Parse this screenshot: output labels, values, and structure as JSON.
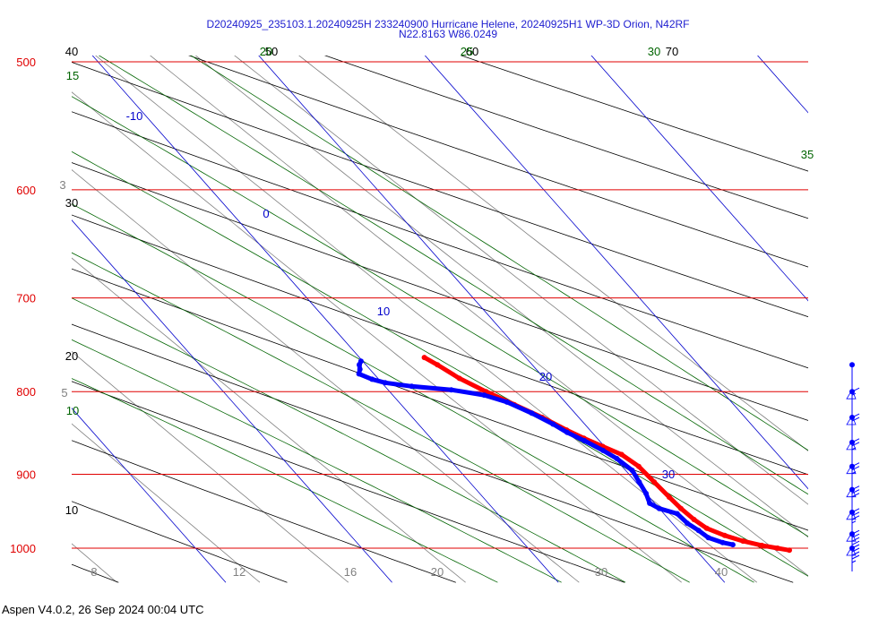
{
  "header": {
    "title_line1": "D20240925_235103.1.20240925H 233240900 Hurricane Helene, 20240925H1 WP-3D Orion, N42RF",
    "title_line2": "N22.8163 W86.0249"
  },
  "footer": {
    "text": "Aspen V4.0.2, 26 Sep 2024  00:04 UTC"
  },
  "colors": {
    "isobar": "#e00000",
    "isotherm": "#0000cc",
    "dry_adiabat": "#000000",
    "moist_adiabat": "#006400",
    "mixing_ratio": "#808080",
    "temperature_trace": "#ff0000",
    "dewpoint_trace": "#0000ff",
    "wind_barbs": "#0000ff",
    "title_text": "#2020d0"
  },
  "chart_data": {
    "type": "skew-t log-p",
    "pressure_range_hPa": [
      1030,
      500
    ],
    "isobars": [
      {
        "p": 500,
        "label": "500"
      },
      {
        "p": 600,
        "label": "600"
      },
      {
        "p": 700,
        "label": "700"
      },
      {
        "p": 800,
        "label": "800"
      },
      {
        "p": 900,
        "label": "900"
      },
      {
        "p": 1000,
        "label": "1000"
      }
    ],
    "isotherms": [
      {
        "t": -10,
        "label": "-10"
      },
      {
        "t": 0,
        "label": "0"
      },
      {
        "t": 10,
        "label": "10"
      },
      {
        "t": 20,
        "label": "20"
      },
      {
        "t": 30,
        "label": "30"
      }
    ],
    "bottom_temperature_ticks": [
      "8",
      "12",
      "16",
      "20",
      "30",
      "40"
    ],
    "dry_adiabat_labels": [
      "40",
      "50",
      "60",
      "70",
      "30",
      "20",
      "10"
    ],
    "moist_adiabat_labels": [
      "15",
      "20",
      "25",
      "30",
      "35",
      "10"
    ],
    "mixing_ratio_labels": [
      "3",
      "5"
    ],
    "temperature_profile": [
      {
        "p": 1003,
        "t": 25.6
      },
      {
        "p": 1000,
        "t": 25.0
      },
      {
        "p": 996,
        "t": 24.2
      },
      {
        "p": 990,
        "t": 23.3
      },
      {
        "p": 982,
        "t": 22.5
      },
      {
        "p": 972,
        "t": 21.8
      },
      {
        "p": 960,
        "t": 21.5
      },
      {
        "p": 945,
        "t": 21.3
      },
      {
        "p": 930,
        "t": 21.2
      },
      {
        "p": 910,
        "t": 21.1
      },
      {
        "p": 890,
        "t": 21.0
      },
      {
        "p": 875,
        "t": 20.6
      },
      {
        "p": 865,
        "t": 19.9
      },
      {
        "p": 855,
        "t": 19.2
      },
      {
        "p": 845,
        "t": 18.6
      },
      {
        "p": 830,
        "t": 17.8
      },
      {
        "p": 815,
        "t": 16.8
      },
      {
        "p": 800,
        "t": 15.8
      },
      {
        "p": 785,
        "t": 14.9
      },
      {
        "p": 770,
        "t": 14.3
      },
      {
        "p": 762,
        "t": 13.9
      }
    ],
    "dewpoint_profile": [
      {
        "p": 995,
        "t": 22.5
      },
      {
        "p": 992,
        "t": 22.0
      },
      {
        "p": 985,
        "t": 21.4
      },
      {
        "p": 975,
        "t": 21.2
      },
      {
        "p": 965,
        "t": 20.9
      },
      {
        "p": 952,
        "t": 20.8
      },
      {
        "p": 945,
        "t": 20.0
      },
      {
        "p": 938,
        "t": 19.7
      },
      {
        "p": 925,
        "t": 20.0
      },
      {
        "p": 910,
        "t": 20.2
      },
      {
        "p": 895,
        "t": 20.4
      },
      {
        "p": 880,
        "t": 20.1
      },
      {
        "p": 870,
        "t": 19.7
      },
      {
        "p": 858,
        "t": 19.1
      },
      {
        "p": 848,
        "t": 18.5
      },
      {
        "p": 838,
        "t": 18.1
      },
      {
        "p": 825,
        "t": 17.4
      },
      {
        "p": 812,
        "t": 16.5
      },
      {
        "p": 804,
        "t": 15.5
      },
      {
        "p": 798,
        "t": 13.8
      },
      {
        "p": 794,
        "t": 11.6
      },
      {
        "p": 790,
        "t": 10.2
      },
      {
        "p": 786,
        "t": 9.6
      },
      {
        "p": 780,
        "t": 9.1
      },
      {
        "p": 775,
        "t": 9.4
      },
      {
        "p": 770,
        "t": 9.6
      },
      {
        "p": 766,
        "t": 9.9
      }
    ],
    "wind_profile": [
      {
        "p": 770,
        "speed_kt": 0
      },
      {
        "p": 800,
        "speed_kt": 15
      },
      {
        "p": 830,
        "speed_kt": 20
      },
      {
        "p": 860,
        "speed_kt": 25
      },
      {
        "p": 890,
        "speed_kt": 25
      },
      {
        "p": 920,
        "speed_kt": 30
      },
      {
        "p": 950,
        "speed_kt": 35
      },
      {
        "p": 980,
        "speed_kt": 40
      },
      {
        "p": 1000,
        "speed_kt": 45
      }
    ]
  }
}
